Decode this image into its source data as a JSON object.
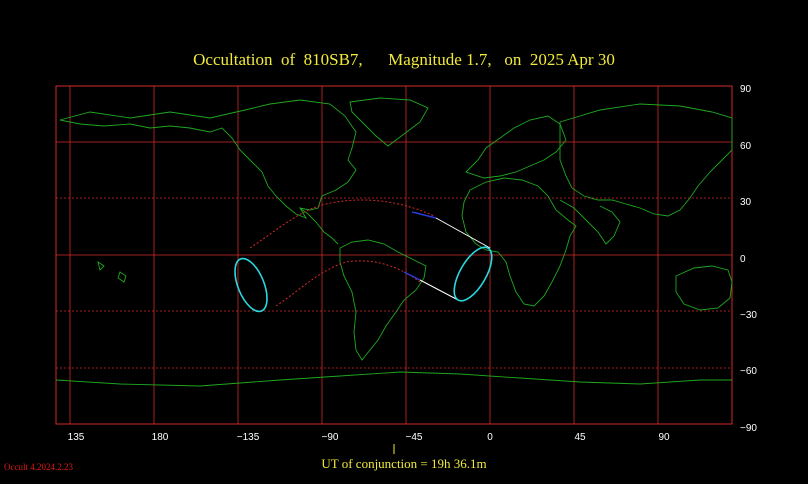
{
  "title": "Occultation  of  810SB7,      Magnitude 1.7,   on  2025 Apr 30",
  "conjunction_text": "UT of conjunction = 19h 36.1m",
  "version_text": "Occult 4.2024.2.23",
  "map": {
    "lon_range": [
      -155,
      120
    ],
    "lat_range": [
      -90,
      90
    ],
    "lon_ticks": [
      "135",
      "180",
      "−135",
      "−90",
      "−45",
      "0",
      "45",
      "90"
    ],
    "lat_ticks": [
      "90",
      "60",
      "30",
      "0",
      "−30",
      "−60",
      "−90"
    ],
    "grid_color": "#d42a2a",
    "coast_color": "#1fa81f",
    "track_color": "#d42a2a",
    "ellipse_color": "#2ad8e0",
    "line_color": "#ffffff"
  }
}
